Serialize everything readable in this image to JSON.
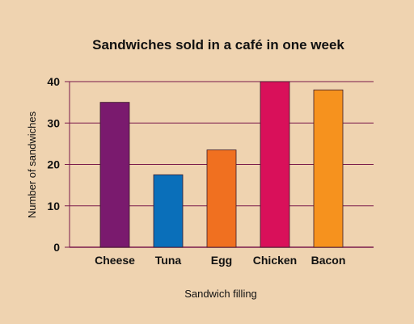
{
  "chart_data": {
    "type": "bar",
    "title": "Sandwiches sold in a café in one week",
    "xlabel": "Sandwich filling",
    "ylabel": "Number of sandwiches",
    "categories": [
      "Cheese",
      "Tuna",
      "Egg",
      "Chicken",
      "Bacon"
    ],
    "values": [
      35,
      17.5,
      23.5,
      40,
      38
    ],
    "colors": [
      "#7a1a6e",
      "#0a6fba",
      "#f07020",
      "#d9105a",
      "#f6921e"
    ],
    "ylim": [
      0,
      40
    ],
    "yticks": [
      0,
      10,
      20,
      30,
      40
    ],
    "grid": true,
    "gridline_color": "#7a1a4a",
    "background": "#efd3b0"
  }
}
